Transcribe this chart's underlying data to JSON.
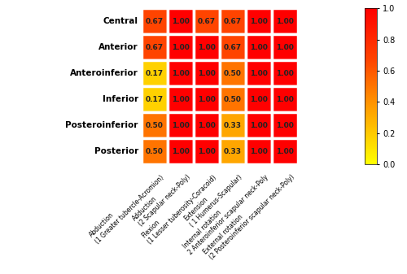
{
  "rows": [
    "Central",
    "Anterior",
    "Anteroinferior",
    "Inferior",
    "Posteroinferior",
    "Posterior"
  ],
  "col_labels_line1": [
    "Abduction",
    "Adduction",
    "Flexion",
    "Extension",
    "Internal rotation",
    "External rotation"
  ],
  "col_labels_line2": [
    "(1 Greater tubercle-Acromion)",
    "(2 Scapular neck-Poly)",
    "(1 Lesser tuberosity-Coracoid)",
    "( 1 Humerus-Scapular)",
    "2 Anteroinferior scapular neck-Poly",
    "(2 Posteroinferior scapular neck-Poly)"
  ],
  "values": [
    [
      0.67,
      1.0,
      0.67,
      0.67,
      1.0,
      1.0
    ],
    [
      0.67,
      1.0,
      1.0,
      0.67,
      1.0,
      1.0
    ],
    [
      0.17,
      1.0,
      1.0,
      0.5,
      1.0,
      1.0
    ],
    [
      0.17,
      1.0,
      1.0,
      0.5,
      1.0,
      1.0
    ],
    [
      0.5,
      1.0,
      1.0,
      0.33,
      1.0,
      1.0
    ],
    [
      0.5,
      1.0,
      1.0,
      0.33,
      1.0,
      1.0
    ]
  ],
  "vmin": 0.0,
  "vmax": 1.0,
  "cell_text_fontsize": 6.5,
  "row_label_fontsize": 7.5,
  "col_label_fontsize": 5.5,
  "background_color": "#ffffff",
  "grid_color": "#ffffff",
  "grid_linewidth": 2.5,
  "colorbar_ticks": [
    0,
    0.2,
    0.4,
    0.6,
    0.8,
    1.0
  ],
  "colorbar_tick_fontsize": 7
}
